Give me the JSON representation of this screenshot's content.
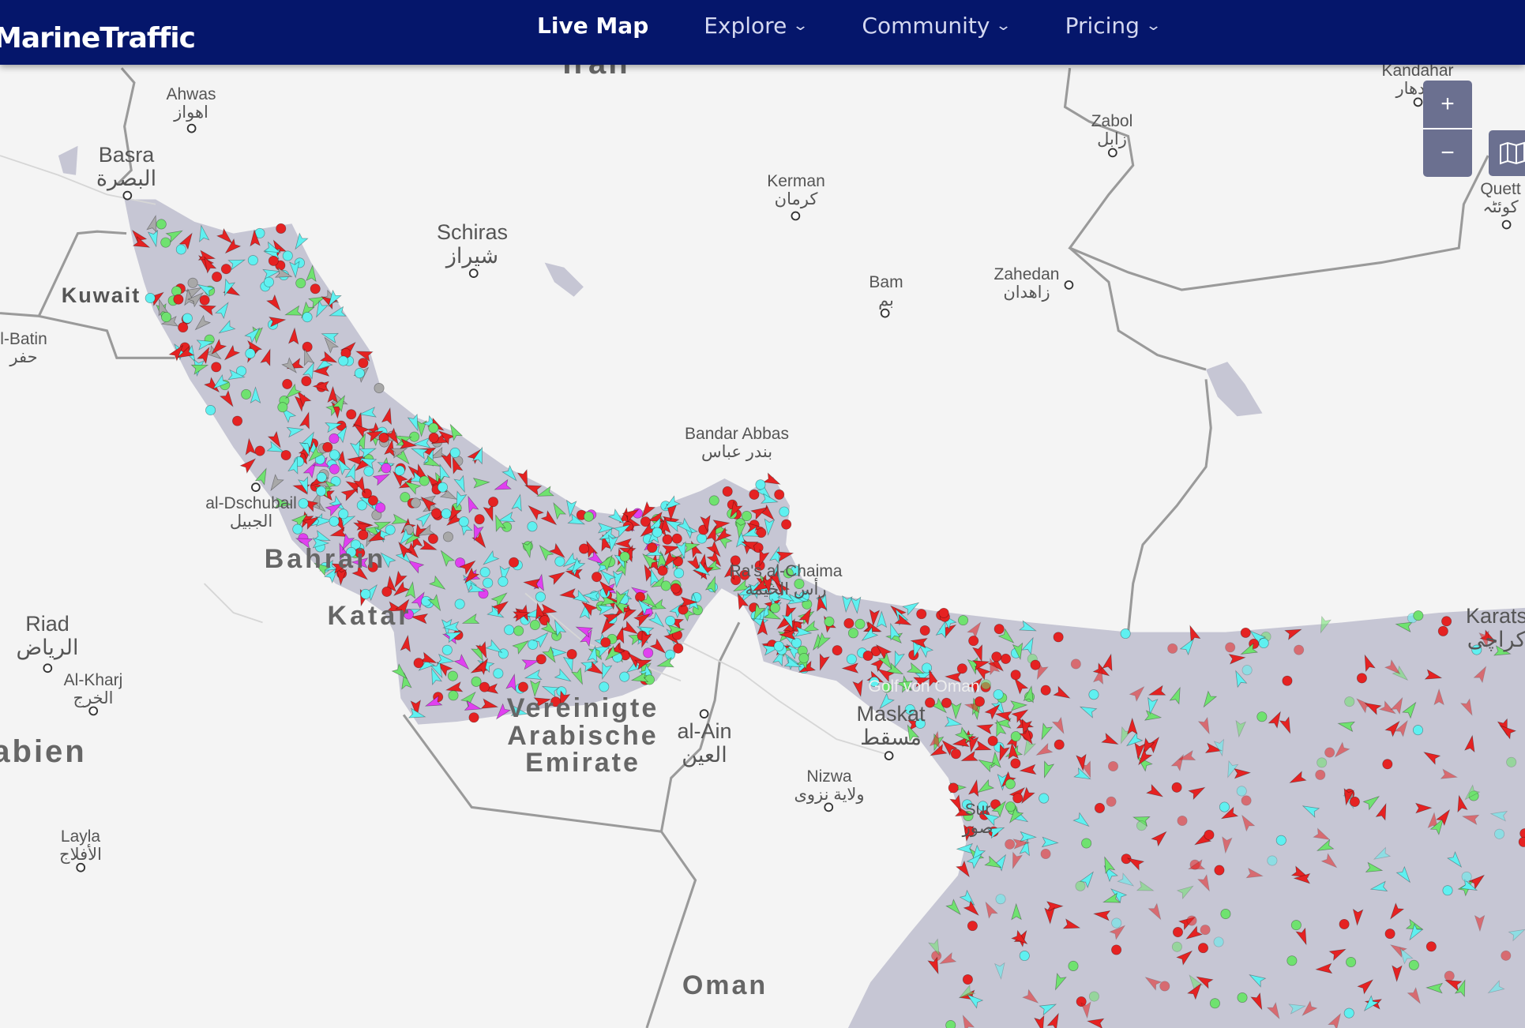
{
  "header": {
    "brand": "MarineTraffic",
    "nav": [
      {
        "label": "Live Map",
        "active": true,
        "dropdown": false
      },
      {
        "label": "Explore",
        "dropdown": true
      },
      {
        "label": "Community",
        "dropdown": true
      },
      {
        "label": "Pricing",
        "dropdown": true
      }
    ]
  },
  "map_controls": {
    "zoom_in": "+",
    "zoom_out": "−",
    "layers_icon": "map-layers-icon"
  },
  "colors": {
    "header_bg": "#05166b",
    "land": "#f4f4f4",
    "water": "#c6c6d4",
    "border": "#9a9a9a",
    "cargo": "#6fe26f",
    "tanker": "#e52222",
    "passenger": "#4aa8ff",
    "tug_special": "#5ff0f0",
    "pleasure": "#e040f0",
    "unknown": "#a8a8a8",
    "high_speed": "#ffee33"
  },
  "labels": {
    "iran": "Iran",
    "ahwas": {
      "name": "Ahwas",
      "ar": "اهواز"
    },
    "basra": {
      "name": "Basra",
      "ar": "البصرة"
    },
    "kuwait": "Kuwait",
    "batin": {
      "name": "l-Batin",
      "ar": "حفر"
    },
    "schiras": {
      "name": "Schiras",
      "ar": "شيراز"
    },
    "kerman": {
      "name": "Kerman",
      "ar": "كرمان"
    },
    "bam": {
      "name": "Bam",
      "ar": "بم"
    },
    "zahedan": {
      "name": "Zahedan",
      "ar": "زاهدان"
    },
    "zabol": {
      "name": "Zabol",
      "ar": "زابل"
    },
    "kandahar": {
      "name": "Kandahar",
      "ar": "كندهار"
    },
    "quetta": {
      "name": "Quett",
      "ar": "کوئٹہ"
    },
    "bandar_abbas": {
      "name": "Bandar Abbas",
      "ar": "بندر عباس"
    },
    "dschubail": {
      "name": "al-Dschubail",
      "ar": "الجبيل"
    },
    "bahrain": "Bahrain",
    "katar": "Katar",
    "riad": {
      "name": "Riad",
      "ar": "الرياض"
    },
    "alkharj": {
      "name": "Al-Kharj",
      "ar": "الخرج"
    },
    "arabien": "abien",
    "layla": {
      "name": "Layla",
      "ar": "الأفلاج"
    },
    "ras_al_khaima": {
      "name": "Ra's al-Chaima",
      "ar": "رأس الخيمة"
    },
    "uae": "Vereinigte Arabische Emirate",
    "alain": {
      "name": "al-Ain",
      "ar": "العين"
    },
    "maskat": {
      "name": "Maskat",
      "ar": "مسقط"
    },
    "golf_von_oman": "Golf von Oman",
    "nizwa": {
      "name": "Nizwa",
      "ar": "ولاية نزوى"
    },
    "oman": "Oman",
    "karatschi": {
      "name": "Karats",
      "ar": "کراچی"
    },
    "sur": {
      "name": "Sur",
      "ar": "صور"
    }
  }
}
